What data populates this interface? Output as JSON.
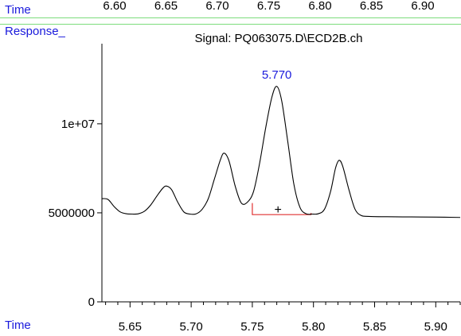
{
  "header": {
    "time_label": "Time",
    "response_label": "Response_",
    "top_ticks": [
      "6.60",
      "6.65",
      "6.70",
      "6.75",
      "6.80",
      "6.85",
      "6.90"
    ],
    "top_tick_values": [
      6.6,
      6.65,
      6.7,
      6.75,
      6.8,
      6.85,
      6.9
    ]
  },
  "footer": {
    "time_label": "Time"
  },
  "chart_data": {
    "type": "line",
    "title": "Signal: PQ063075.D\\ECD2B.ch",
    "xlabel": "Time",
    "ylabel": "Response_",
    "xlim": [
      5.627,
      5.92
    ],
    "ylim": [
      0,
      14500000
    ],
    "x_ticks": [
      5.65,
      5.7,
      5.75,
      5.8,
      5.85,
      5.9
    ],
    "x_tick_labels": [
      "5.65",
      "5.70",
      "5.75",
      "5.80",
      "5.85",
      "5.90"
    ],
    "y_ticks": [
      0,
      5000000,
      10000000
    ],
    "y_tick_labels": [
      "0",
      "5000000",
      "1e+07"
    ],
    "grid": false,
    "colors": {
      "trace": "#000000",
      "baseline": "#e03030",
      "peak_label": "#1a1adc"
    },
    "series": [
      {
        "x": [
          5.627,
          5.632,
          5.637,
          5.642,
          5.647,
          5.652,
          5.657,
          5.662,
          5.667,
          5.672,
          5.677,
          5.68,
          5.684,
          5.689,
          5.694,
          5.699,
          5.704,
          5.709,
          5.714,
          5.719,
          5.724,
          5.727,
          5.731,
          5.736,
          5.741,
          5.746,
          5.751,
          5.756,
          5.761,
          5.766,
          5.77,
          5.774,
          5.779,
          5.784,
          5.789,
          5.794,
          5.799,
          5.804,
          5.809,
          5.814,
          5.818,
          5.821,
          5.824,
          5.829,
          5.834,
          5.839,
          5.845,
          5.86,
          5.88,
          5.9,
          5.92
        ],
        "y": [
          5800000,
          5750000,
          5350000,
          5050000,
          4950000,
          4930000,
          4950000,
          5100000,
          5450000,
          5950000,
          6400000,
          6500000,
          6300000,
          5600000,
          5050000,
          4930000,
          4940000,
          5200000,
          5800000,
          6900000,
          8000000,
          8350000,
          7900000,
          6500000,
          5550000,
          5600000,
          6200000,
          7800000,
          9800000,
          11500000,
          12100000,
          11300000,
          9000000,
          6600000,
          5300000,
          4950000,
          4930000,
          4950000,
          5200000,
          6200000,
          7500000,
          7950000,
          7600000,
          6300000,
          5200000,
          4850000,
          4800000,
          4780000,
          4770000,
          4760000,
          4740000
        ]
      }
    ],
    "peak": {
      "label": "5.770",
      "x": 5.77,
      "y": 12100000,
      "marker": "+",
      "marker_x": 5.771,
      "marker_y": 5050000
    },
    "baseline_segment": {
      "x": [
        5.75,
        5.798
      ],
      "y_top": 5550000,
      "y_bottom": 4900000
    }
  }
}
